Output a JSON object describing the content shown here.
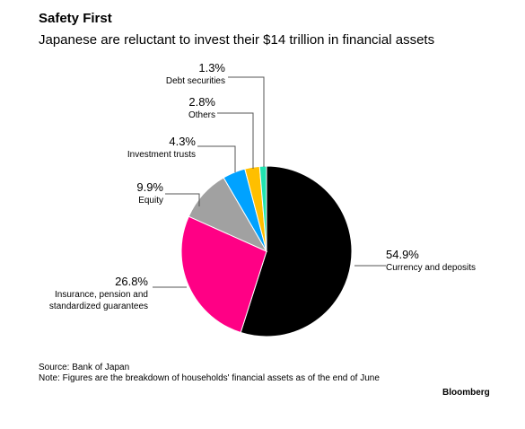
{
  "title": "Safety First",
  "subtitle": "Japanese are reluctant to invest their $14 trillion in financial assets",
  "chart_data": {
    "type": "pie",
    "start_angle_deg": 0,
    "direction": "clockwise",
    "slices": [
      {
        "name": "Currency and deposits",
        "value": 54.9,
        "label": "54.9%",
        "color": "#000000",
        "label_lines": [
          "Currency and deposits"
        ]
      },
      {
        "name": "Insurance, pension and standardized guarantees",
        "value": 26.8,
        "label": "26.8%",
        "color": "#ff0085",
        "label_lines": [
          "Insurance, pension and",
          "standardized guarantees"
        ]
      },
      {
        "name": "Equity",
        "value": 9.9,
        "label": "9.9%",
        "color": "#a1a1a1",
        "label_lines": [
          "Equity"
        ]
      },
      {
        "name": "Investment trusts",
        "value": 4.3,
        "label": "4.3%",
        "color": "#00a2ff",
        "label_lines": [
          "Investment trusts"
        ]
      },
      {
        "name": "Others",
        "value": 2.8,
        "label": "2.8%",
        "color": "#ffbf00",
        "label_lines": [
          "Others"
        ]
      },
      {
        "name": "Debt securities",
        "value": 1.3,
        "label": "1.3%",
        "color": "#20e3b0",
        "label_lines": [
          "Debt securities"
        ]
      }
    ]
  },
  "footer": {
    "source": "Source: Bank of Japan",
    "note": "Note: Figures are the breakdown of households' financial assets as of the end of June"
  },
  "brand": "Bloomberg"
}
